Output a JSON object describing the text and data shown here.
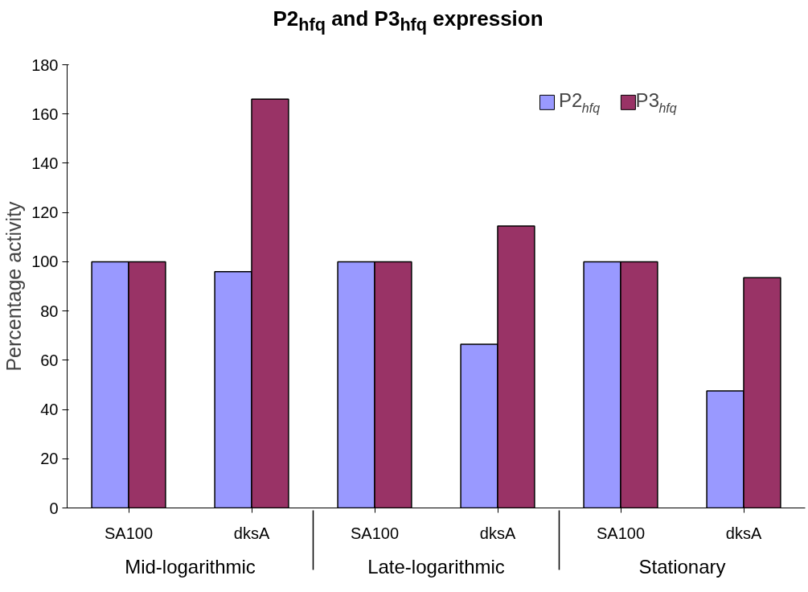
{
  "chart_data": {
    "type": "bar",
    "title": "P2$_{hfq}$ and P3$_{hfq}$ expression",
    "ylabel": "Percentage activity",
    "categories": [
      "SA100",
      "dksA",
      "SA100",
      "dksA",
      "SA100",
      "dksA"
    ],
    "annotations": [
      "Mid-logarithmic",
      "Late-logarithmic",
      "Stationary"
    ],
    "series": [
      {
        "name": "P2$_{hfq}$",
        "color": "#9999ff",
        "values": [
          100,
          96,
          100,
          66.5,
          100,
          47.5
        ]
      },
      {
        "name": "P3$_{hfq}$",
        "color": "#993366",
        "values": [
          100,
          166,
          100,
          114.5,
          100,
          93.5
        ]
      }
    ],
    "ylim": [
      0,
      180
    ],
    "yticks": [
      0,
      20,
      40,
      60,
      80,
      100,
      120,
      140,
      160,
      180
    ],
    "grid": false,
    "legend": "top right"
  }
}
